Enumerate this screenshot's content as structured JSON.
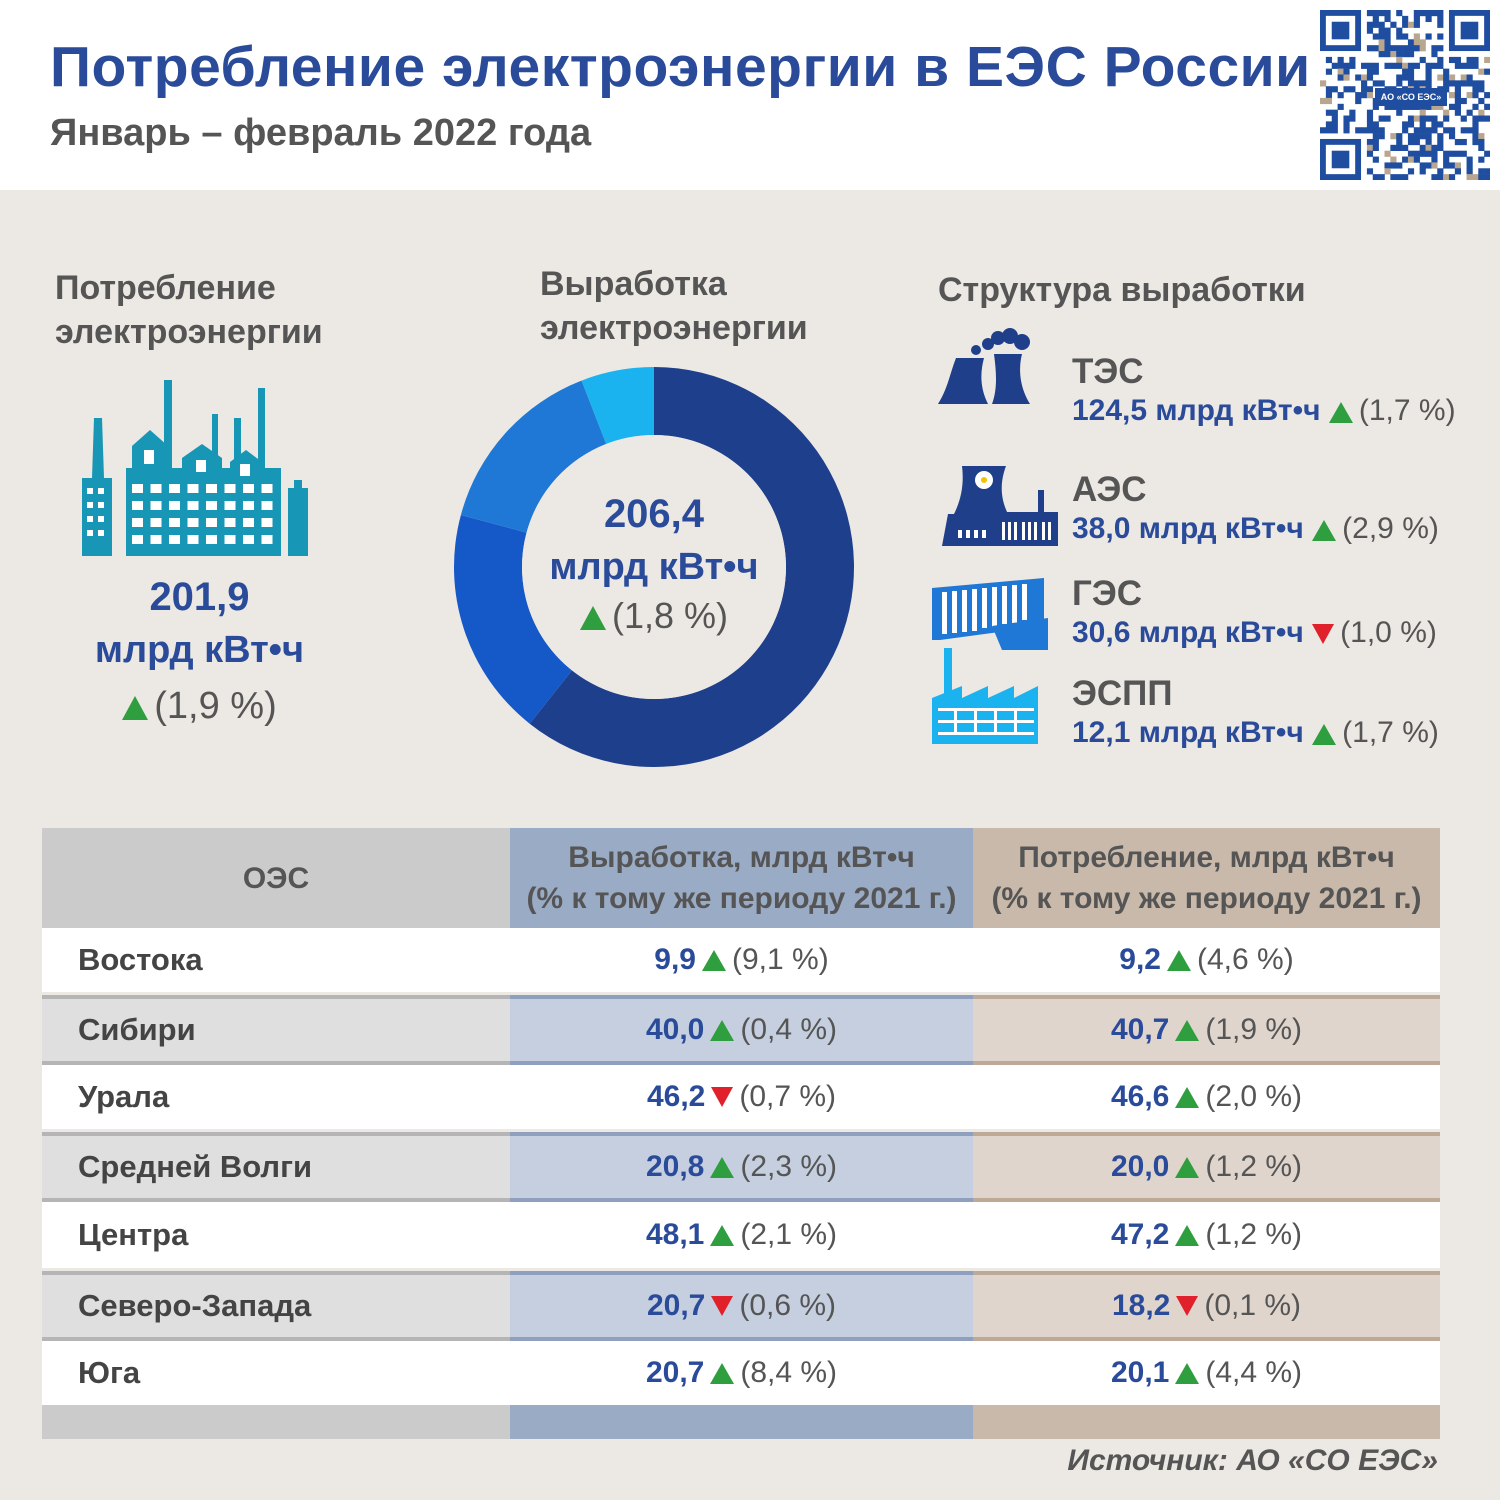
{
  "header": {
    "title": "Потребление электроэнергии в ЕЭС России",
    "subtitle": "Январь – февраль 2022 года",
    "qr_label": "АО «СО ЕЭС»"
  },
  "consumption": {
    "heading_line1": "Потребление",
    "heading_line2": "электроэнергии",
    "value": "201,9",
    "unit": "млрд кВт•ч",
    "change": "(1,9 %)",
    "direction": "up"
  },
  "generation": {
    "heading_line1": "Выработка",
    "heading_line2": "электроэнергии",
    "value": "206,4",
    "unit": "млрд кВт•ч",
    "change": "(1,8 %)",
    "direction": "up"
  },
  "structure": {
    "heading": "Структура выработки",
    "items": [
      {
        "name": "ТЭС",
        "value": "124,5 млрд кВт•ч",
        "change": "(1,7 %)",
        "direction": "up",
        "icon": "thermal-plant-icon"
      },
      {
        "name": "АЭС",
        "value": "38,0 млрд кВт•ч",
        "change": "(2,9 %)",
        "direction": "up",
        "icon": "nuclear-plant-icon"
      },
      {
        "name": "ГЭС",
        "value": "30,6 млрд кВт•ч",
        "change": "(1,0 %)",
        "direction": "down",
        "icon": "hydro-plant-icon"
      },
      {
        "name": "ЭСПП",
        "value": "12,1 млрд кВт•ч",
        "change": "(1,7 %)",
        "direction": "up",
        "icon": "industrial-plant-icon"
      }
    ]
  },
  "chart_data": {
    "type": "pie",
    "categories": [
      "ТЭС",
      "АЭС",
      "ГЭС",
      "ЭСПП"
    ],
    "values": [
      124.5,
      38.0,
      30.6,
      12.1
    ],
    "colors": [
      "#1d3f8c",
      "#1558c8",
      "#1f78d6",
      "#1ab3f0"
    ],
    "style": "donut"
  },
  "table": {
    "headers": {
      "region": "ОЭС",
      "gen_line1": "Выработка, млрд кВт•ч",
      "gen_line2": "(% к тому же периоду 2021 г.)",
      "cons_line1": "Потребление, млрд кВт•ч",
      "cons_line2": "(% к тому же периоду 2021 г.)"
    },
    "rows": [
      {
        "region": "Востока",
        "gen": "9,9",
        "gen_dir": "up",
        "gen_pct": "(9,1 %)",
        "cons": "9,2",
        "cons_dir": "up",
        "cons_pct": "(4,6 %)"
      },
      {
        "region": "Сибири",
        "gen": "40,0",
        "gen_dir": "up",
        "gen_pct": "(0,4 %)",
        "cons": "40,7",
        "cons_dir": "up",
        "cons_pct": "(1,9 %)"
      },
      {
        "region": "Урала",
        "gen": "46,2",
        "gen_dir": "down",
        "gen_pct": "(0,7 %)",
        "cons": "46,6",
        "cons_dir": "up",
        "cons_pct": "(2,0 %)"
      },
      {
        "region": "Средней Волги",
        "gen": "20,8",
        "gen_dir": "up",
        "gen_pct": "(2,3 %)",
        "cons": "20,0",
        "cons_dir": "up",
        "cons_pct": "(1,2 %)"
      },
      {
        "region": "Центра",
        "gen": "48,1",
        "gen_dir": "up",
        "gen_pct": "(2,1 %)",
        "cons": "47,2",
        "cons_dir": "up",
        "cons_pct": "(1,2 %)"
      },
      {
        "region": "Северо-Запада",
        "gen": "20,7",
        "gen_dir": "down",
        "gen_pct": "(0,6 %)",
        "cons": "18,2",
        "cons_dir": "down",
        "cons_pct": "(0,1 %)"
      },
      {
        "region": "Юга",
        "gen": "20,7",
        "gen_dir": "up",
        "gen_pct": "(8,4 %)",
        "cons": "20,1",
        "cons_dir": "up",
        "cons_pct": "(4,4 %)"
      }
    ]
  },
  "source": "Источник: АО «СО ЕЭС»"
}
